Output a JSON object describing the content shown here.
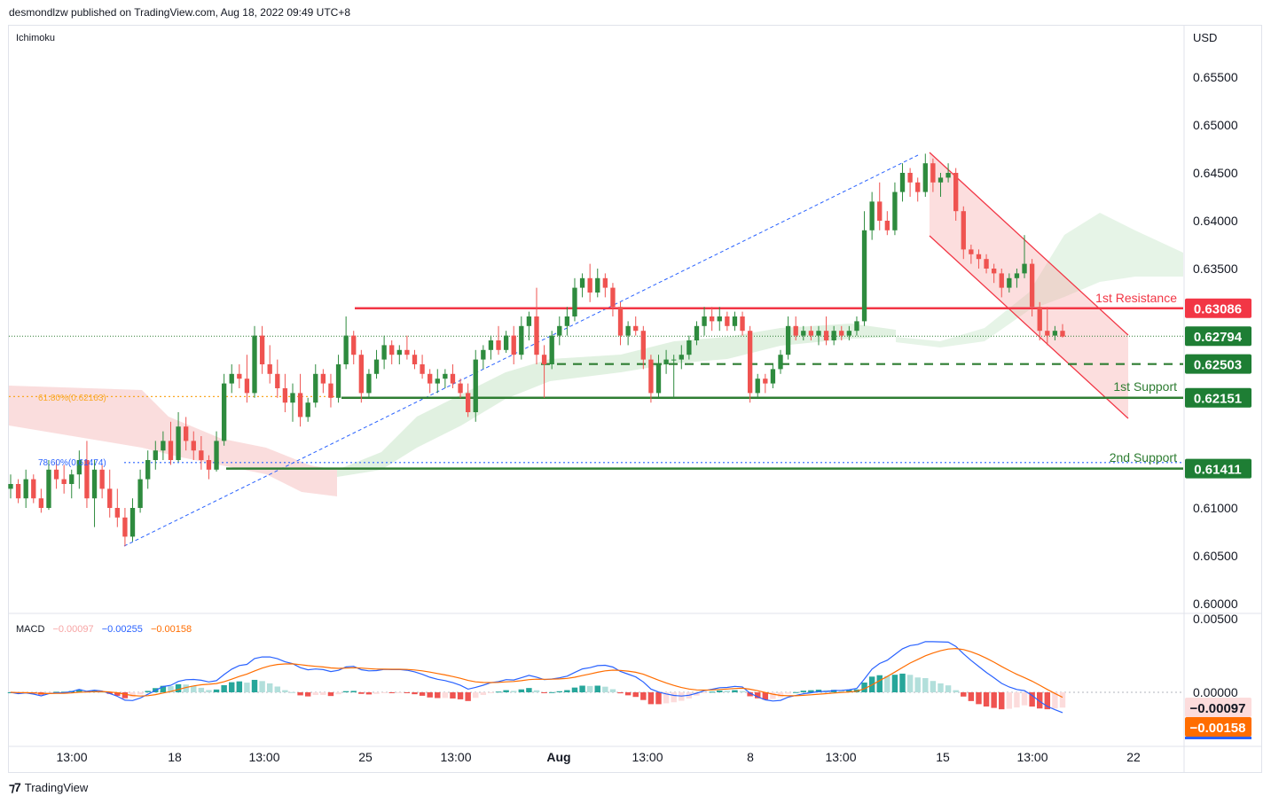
{
  "header": {
    "publisher_line": "desmondlzw published on TradingView.com, Aug 18, 2022 09:49 UTC+8"
  },
  "footer": {
    "brand": "TradingView",
    "logo_icon": "tradingview-logo-icon"
  },
  "price_axis": {
    "currency": "USD",
    "ticks": [
      "0.65500",
      "0.65000",
      "0.64500",
      "0.64000",
      "0.63500",
      "0.61000",
      "0.60500",
      "0.60000"
    ],
    "tick_values": [
      0.655,
      0.65,
      0.645,
      0.64,
      0.635,
      0.61,
      0.605,
      0.6
    ]
  },
  "macd_axis": {
    "ticks": [
      "0.00500",
      "0.00000"
    ],
    "tick_values": [
      0.005,
      0.0
    ]
  },
  "time_axis": {
    "labels": [
      "13:00",
      "18",
      "13:00",
      "25",
      "13:00",
      "Aug",
      "13:00",
      "8",
      "13:00",
      "15",
      "13:00",
      "22"
    ]
  },
  "indicators": {
    "ichimoku_label": "Ichimoku",
    "macd_label": "MACD",
    "macd_hist": "−0.00097",
    "macd_line": "−0.00255",
    "macd_signal": "−0.00158"
  },
  "price_badges": {
    "resistance": {
      "text": "0.63086",
      "value": 0.63086,
      "color": "#f23645"
    },
    "current": {
      "text": "0.62794",
      "value": 0.62794,
      "color": "#1e7e34"
    },
    "pivot": {
      "text": "0.62503",
      "value": 0.62503,
      "color": "#1e7e34"
    },
    "support1": {
      "text": "0.62151",
      "value": 0.62151,
      "color": "#1e7e34"
    },
    "support2": {
      "text": "0.61411",
      "value": 0.61411,
      "color": "#1e7e34"
    },
    "macd_hist_badge": {
      "text": "−0.00097",
      "color": "#fcdcdc",
      "text_color": "#131722"
    },
    "macd_signal_badge": {
      "text": "−0.00158",
      "color": "#ff6d00",
      "text_color": "#ffffff"
    }
  },
  "annotations": {
    "resistance_label": "1st Resistance",
    "support1_label": "1st Support",
    "support2_label": "2nd Support",
    "fib_618": "61.80%(0.62163)",
    "fib_786": "78.60%(0.61474)"
  },
  "colors": {
    "up": "#26a69a",
    "up_candle": "#2e8b3e",
    "down_candle": "#ef5350",
    "resistance": "#f23645",
    "support": "#2e7d32",
    "macd_line": "#2962ff",
    "signal_line": "#ff6d00"
  },
  "chart_data": {
    "type": "line",
    "title": "",
    "xlabel": "",
    "ylabel": "USD",
    "ylim": [
      0.598,
      0.659
    ],
    "levels": {
      "resistance": 0.63086,
      "pivot": 0.62503,
      "support1": 0.62151,
      "support2": 0.61411,
      "fib_618": 0.62163,
      "fib_786": 0.61474
    },
    "candles": [
      [
        0.612,
        0.6135,
        0.611,
        0.6125
      ],
      [
        0.6125,
        0.613,
        0.6105,
        0.611
      ],
      [
        0.611,
        0.614,
        0.61,
        0.613
      ],
      [
        0.613,
        0.6135,
        0.6105,
        0.611
      ],
      [
        0.611,
        0.612,
        0.6095,
        0.61
      ],
      [
        0.61,
        0.615,
        0.6098,
        0.614
      ],
      [
        0.614,
        0.615,
        0.612,
        0.613
      ],
      [
        0.613,
        0.6145,
        0.6115,
        0.6125
      ],
      [
        0.6125,
        0.614,
        0.611,
        0.6135
      ],
      [
        0.6135,
        0.616,
        0.612,
        0.615
      ],
      [
        0.615,
        0.617,
        0.61,
        0.611
      ],
      [
        0.611,
        0.615,
        0.608,
        0.614
      ],
      [
        0.614,
        0.6145,
        0.611,
        0.612
      ],
      [
        0.612,
        0.614,
        0.609,
        0.61
      ],
      [
        0.61,
        0.612,
        0.608,
        0.609
      ],
      [
        0.609,
        0.61,
        0.606,
        0.607
      ],
      [
        0.607,
        0.611,
        0.6065,
        0.61
      ],
      [
        0.61,
        0.614,
        0.6095,
        0.613
      ],
      [
        0.613,
        0.616,
        0.612,
        0.615
      ],
      [
        0.615,
        0.617,
        0.614,
        0.616
      ],
      [
        0.616,
        0.618,
        0.615,
        0.617
      ],
      [
        0.617,
        0.619,
        0.6145,
        0.615
      ],
      [
        0.615,
        0.62,
        0.6148,
        0.6185
      ],
      [
        0.6185,
        0.6195,
        0.616,
        0.617
      ],
      [
        0.617,
        0.618,
        0.615,
        0.616
      ],
      [
        0.616,
        0.6175,
        0.614,
        0.615
      ],
      [
        0.615,
        0.6155,
        0.613,
        0.614
      ],
      [
        0.614,
        0.618,
        0.6138,
        0.617
      ],
      [
        0.617,
        0.624,
        0.6165,
        0.623
      ],
      [
        0.623,
        0.625,
        0.622,
        0.624
      ],
      [
        0.624,
        0.625,
        0.6225,
        0.6235
      ],
      [
        0.6235,
        0.626,
        0.621,
        0.622
      ],
      [
        0.622,
        0.629,
        0.6215,
        0.628
      ],
      [
        0.628,
        0.629,
        0.624,
        0.625
      ],
      [
        0.625,
        0.627,
        0.623,
        0.624
      ],
      [
        0.624,
        0.6255,
        0.6215,
        0.6225
      ],
      [
        0.6225,
        0.624,
        0.62,
        0.621
      ],
      [
        0.621,
        0.623,
        0.619,
        0.622
      ],
      [
        0.622,
        0.624,
        0.6185,
        0.6195
      ],
      [
        0.6195,
        0.6215,
        0.619,
        0.621
      ],
      [
        0.621,
        0.625,
        0.6205,
        0.624
      ],
      [
        0.624,
        0.6245,
        0.622,
        0.623
      ],
      [
        0.623,
        0.624,
        0.6205,
        0.6215
      ],
      [
        0.6215,
        0.626,
        0.621,
        0.625
      ],
      [
        0.625,
        0.63,
        0.6245,
        0.628
      ],
      [
        0.628,
        0.6285,
        0.625,
        0.626
      ],
      [
        0.626,
        0.6265,
        0.621,
        0.622
      ],
      [
        0.622,
        0.6245,
        0.6215,
        0.624
      ],
      [
        0.624,
        0.6265,
        0.6235,
        0.6255
      ],
      [
        0.6255,
        0.628,
        0.6245,
        0.627
      ],
      [
        0.627,
        0.6275,
        0.625,
        0.626
      ],
      [
        0.626,
        0.627,
        0.625,
        0.6265
      ],
      [
        0.6265,
        0.628,
        0.6255,
        0.626
      ],
      [
        0.626,
        0.6265,
        0.6245,
        0.625
      ],
      [
        0.625,
        0.626,
        0.6235,
        0.624
      ],
      [
        0.624,
        0.6245,
        0.622,
        0.623
      ],
      [
        0.623,
        0.6245,
        0.622,
        0.6235
      ],
      [
        0.6235,
        0.6245,
        0.6225,
        0.624
      ],
      [
        0.624,
        0.625,
        0.6225,
        0.623
      ],
      [
        0.623,
        0.6235,
        0.6215,
        0.622
      ],
      [
        0.622,
        0.623,
        0.6195,
        0.62
      ],
      [
        0.62,
        0.6265,
        0.619,
        0.6255
      ],
      [
        0.6255,
        0.627,
        0.6245,
        0.6265
      ],
      [
        0.6265,
        0.628,
        0.6255,
        0.6275
      ],
      [
        0.6275,
        0.629,
        0.626,
        0.6265
      ],
      [
        0.6265,
        0.6285,
        0.6262,
        0.628
      ],
      [
        0.628,
        0.629,
        0.625,
        0.626
      ],
      [
        0.626,
        0.63,
        0.6255,
        0.629
      ],
      [
        0.629,
        0.6305,
        0.6275,
        0.63
      ],
      [
        0.63,
        0.633,
        0.625,
        0.626
      ],
      [
        0.626,
        0.627,
        0.6215,
        0.625
      ],
      [
        0.625,
        0.6285,
        0.6245,
        0.628
      ],
      [
        0.628,
        0.63,
        0.627,
        0.629
      ],
      [
        0.629,
        0.631,
        0.628,
        0.63
      ],
      [
        0.63,
        0.634,
        0.6295,
        0.633
      ],
      [
        0.633,
        0.6345,
        0.632,
        0.634
      ],
      [
        0.634,
        0.6355,
        0.6315,
        0.6325
      ],
      [
        0.6325,
        0.635,
        0.632,
        0.634
      ],
      [
        0.634,
        0.6345,
        0.632,
        0.633
      ],
      [
        0.633,
        0.6335,
        0.63,
        0.631
      ],
      [
        0.631,
        0.6315,
        0.627,
        0.628
      ],
      [
        0.628,
        0.6295,
        0.627,
        0.629
      ],
      [
        0.629,
        0.63,
        0.628,
        0.6285
      ],
      [
        0.6285,
        0.629,
        0.6245,
        0.6255
      ],
      [
        0.6255,
        0.626,
        0.621,
        0.622
      ],
      [
        0.622,
        0.626,
        0.6215,
        0.625
      ],
      [
        0.625,
        0.6265,
        0.624,
        0.6255
      ],
      [
        0.6255,
        0.626,
        0.6215,
        0.6255
      ],
      [
        0.6255,
        0.627,
        0.6245,
        0.626
      ],
      [
        0.626,
        0.628,
        0.6255,
        0.6275
      ],
      [
        0.6275,
        0.6295,
        0.627,
        0.629
      ],
      [
        0.629,
        0.631,
        0.628,
        0.63
      ],
      [
        0.63,
        0.631,
        0.6285,
        0.6295
      ],
      [
        0.6295,
        0.631,
        0.6285,
        0.63
      ],
      [
        0.63,
        0.6305,
        0.6285,
        0.629
      ],
      [
        0.629,
        0.6305,
        0.6285,
        0.63
      ],
      [
        0.63,
        0.6305,
        0.628,
        0.6285
      ],
      [
        0.6285,
        0.629,
        0.621,
        0.622
      ],
      [
        0.622,
        0.624,
        0.6215,
        0.6235
      ],
      [
        0.6235,
        0.624,
        0.622,
        0.623
      ],
      [
        0.623,
        0.625,
        0.6225,
        0.6245
      ],
      [
        0.6245,
        0.6265,
        0.624,
        0.626
      ],
      [
        0.626,
        0.63,
        0.6255,
        0.629
      ],
      [
        0.629,
        0.63,
        0.6275,
        0.628
      ],
      [
        0.628,
        0.629,
        0.6275,
        0.6285
      ],
      [
        0.6285,
        0.629,
        0.6275,
        0.628
      ],
      [
        0.628,
        0.629,
        0.627,
        0.6285
      ],
      [
        0.6285,
        0.63,
        0.627,
        0.6275
      ],
      [
        0.6275,
        0.629,
        0.627,
        0.6285
      ],
      [
        0.6285,
        0.629,
        0.6275,
        0.628
      ],
      [
        0.628,
        0.629,
        0.6275,
        0.6285
      ],
      [
        0.6285,
        0.63,
        0.628,
        0.6295
      ],
      [
        0.6295,
        0.641,
        0.629,
        0.639
      ],
      [
        0.639,
        0.643,
        0.638,
        0.642
      ],
      [
        0.642,
        0.644,
        0.639,
        0.64
      ],
      [
        0.64,
        0.641,
        0.6385,
        0.639
      ],
      [
        0.639,
        0.644,
        0.6385,
        0.643
      ],
      [
        0.643,
        0.646,
        0.642,
        0.645
      ],
      [
        0.645,
        0.6455,
        0.6425,
        0.644
      ],
      [
        0.644,
        0.6445,
        0.642,
        0.643
      ],
      [
        0.643,
        0.647,
        0.6425,
        0.646
      ],
      [
        0.646,
        0.6465,
        0.643,
        0.644
      ],
      [
        0.644,
        0.645,
        0.6425,
        0.6445
      ],
      [
        0.6445,
        0.646,
        0.644,
        0.645
      ],
      [
        0.645,
        0.6455,
        0.64,
        0.641
      ],
      [
        0.641,
        0.6415,
        0.636,
        0.637
      ],
      [
        0.637,
        0.6375,
        0.6355,
        0.6365
      ],
      [
        0.6365,
        0.637,
        0.635,
        0.636
      ],
      [
        0.636,
        0.6365,
        0.6345,
        0.635
      ],
      [
        0.635,
        0.6355,
        0.6335,
        0.6345
      ],
      [
        0.6345,
        0.635,
        0.632,
        0.633
      ],
      [
        0.633,
        0.6345,
        0.6325,
        0.634
      ],
      [
        0.634,
        0.635,
        0.633,
        0.6345
      ],
      [
        0.6345,
        0.6385,
        0.634,
        0.6355
      ],
      [
        0.6355,
        0.636,
        0.63,
        0.631
      ],
      [
        0.631,
        0.6315,
        0.6275,
        0.6285
      ],
      [
        0.6285,
        0.631,
        0.627,
        0.628
      ],
      [
        0.628,
        0.629,
        0.6275,
        0.6285
      ],
      [
        0.6285,
        0.6292,
        0.6278,
        0.6279
      ]
    ]
  }
}
